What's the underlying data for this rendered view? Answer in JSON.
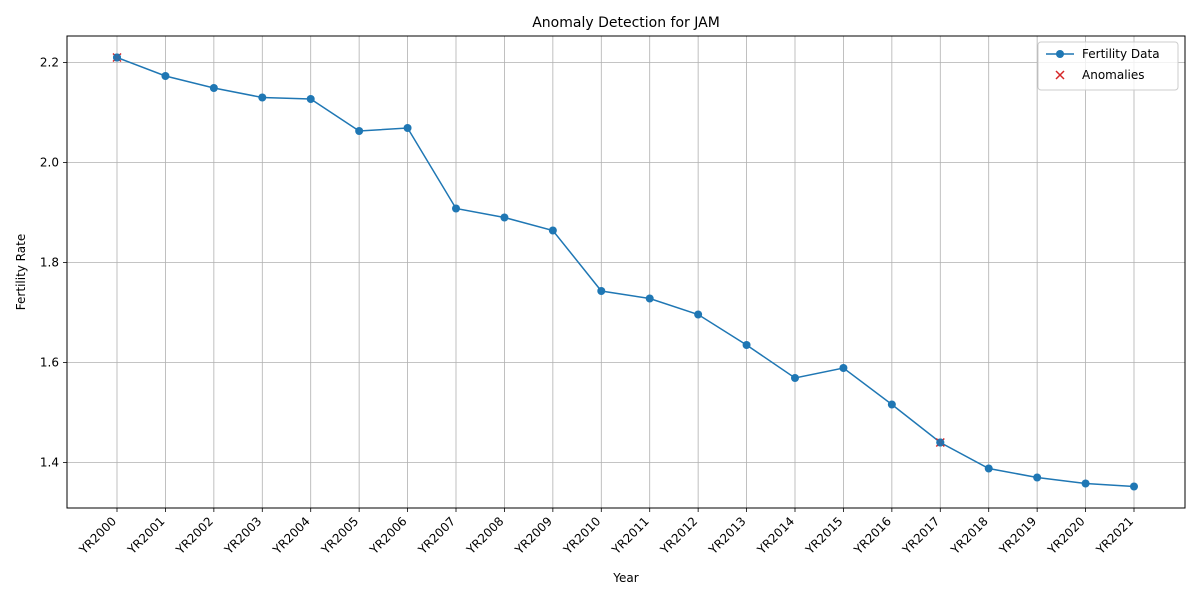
{
  "chart_data": {
    "type": "line",
    "title": "Anomaly Detection for JAM",
    "xlabel": "Year",
    "ylabel": "Fertility Rate",
    "categories": [
      "YR2000",
      "YR2001",
      "YR2002",
      "YR2003",
      "YR2004",
      "YR2005",
      "YR2006",
      "YR2007",
      "YR2008",
      "YR2009",
      "YR2010",
      "YR2011",
      "YR2012",
      "YR2013",
      "YR2014",
      "YR2015",
      "YR2016",
      "YR2017",
      "YR2018",
      "YR2019",
      "YR2020",
      "YR2021"
    ],
    "series": [
      {
        "name": "Fertility Data",
        "color": "#1f77b4",
        "marker": "circle",
        "values": [
          2.21,
          2.173,
          2.149,
          2.13,
          2.127,
          2.063,
          2.069,
          1.908,
          1.89,
          1.864,
          1.743,
          1.728,
          1.696,
          1.635,
          1.569,
          1.589,
          1.516,
          1.44,
          1.388,
          1.37,
          1.358,
          1.352
        ]
      }
    ],
    "anomalies": {
      "name": "Anomalies",
      "color": "#d62728",
      "marker": "x",
      "points": [
        {
          "x": "YR2000",
          "y": 2.21
        },
        {
          "x": "YR2017",
          "y": 1.44
        }
      ]
    },
    "yticks": [
      "1.4",
      "1.6",
      "1.8",
      "2.0",
      "2.2"
    ],
    "ylim": [
      1.309,
      2.253
    ],
    "grid": true,
    "legend": "top-right"
  }
}
